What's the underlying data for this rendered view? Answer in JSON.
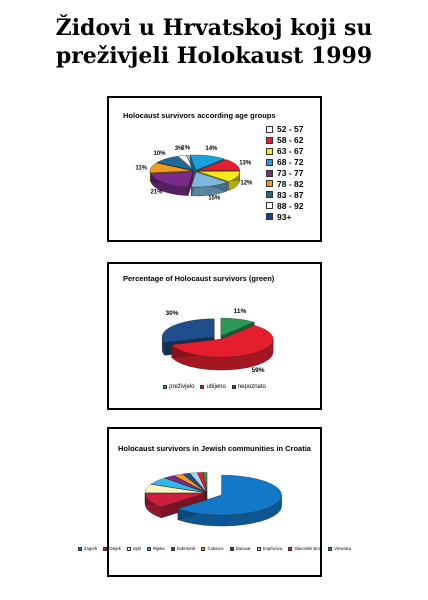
{
  "poster": {
    "title_line1": "Židovi u Hrvatskoj koji su",
    "title_line2": "preživjeli Holokaust 1999"
  },
  "chart_data": [
    {
      "type": "pie",
      "title": "Holocaust survivors according age groups",
      "categories": [
        "52 - 57",
        "58 - 62",
        "63 - 67",
        "68 - 72",
        "73 - 77",
        "78 - 82",
        "83 - 87",
        "88 - 92",
        "93+"
      ],
      "values": [
        1,
        14,
        13,
        12,
        15,
        21,
        11,
        10,
        3
      ],
      "colors": [
        "#b6d0ef",
        "#1aa0dd",
        "#e41e2c",
        "#f6ea19",
        "#7cb8de",
        "#7a2a88",
        "#f39a1c",
        "#1f6a9a",
        "#ffffff"
      ],
      "data_labels": [
        "1%",
        "14%",
        "13%",
        "12%",
        "15%",
        "21%",
        "11%",
        "10%",
        "3%"
      ],
      "legend": {
        "position": "right",
        "entries": [
          "52 - 57",
          "58 - 62",
          "63 - 67",
          "68 - 72",
          "73 - 77",
          "78 - 82",
          "83 - 87",
          "88 - 92",
          "93+"
        ],
        "colors": [
          "#ffffff",
          "#e41e2c",
          "#f6ea19",
          "#1aa0dd",
          "#7a2a88",
          "#f39a1c",
          "#1f6a9a",
          "#ffffff",
          "#173f8a"
        ]
      }
    },
    {
      "type": "pie",
      "title": "Percentage of Holocaust survivors (green)",
      "categories": [
        "preživjelo",
        "ubijeno",
        "nepoznato"
      ],
      "values": [
        11,
        59,
        30
      ],
      "colors": [
        "#2b9a56",
        "#e41e2c",
        "#1f4e8c"
      ],
      "data_labels": [
        "11%",
        "59%",
        "30%"
      ],
      "legend": {
        "position": "bottom",
        "entries": [
          "preživjelo",
          "ubijeno",
          "nepoznato"
        ]
      }
    },
    {
      "type": "pie",
      "title": "Holocaust survivors in Jewish communities in Croatia",
      "categories": [
        "Zagreb",
        "Osijek",
        "Split",
        "Rijeka",
        "Dubrovnik",
        "Čakovec",
        "Daruvar",
        "Koprivnica",
        "Slavonski Brod",
        "Virovitica"
      ],
      "values": [
        63,
        12,
        7,
        6,
        3,
        2.5,
        2,
        2,
        1.5,
        1
      ],
      "colors": [
        "#1478c8",
        "#cc1f3f",
        "#faf3c0",
        "#35b6e8",
        "#7a2a88",
        "#f39a1c",
        "#1f4e8c",
        "#b6d0ef",
        "#e41e2c",
        "#2b9a56"
      ],
      "legend": {
        "position": "bottom",
        "entries": [
          "Zagreb",
          "Osijek",
          "Split",
          "Rijeka",
          "Dubrovnik",
          "Čakovec",
          "Daruvar",
          "Koprivnica",
          "Slavonski Brod",
          "Virovitica"
        ]
      }
    }
  ]
}
